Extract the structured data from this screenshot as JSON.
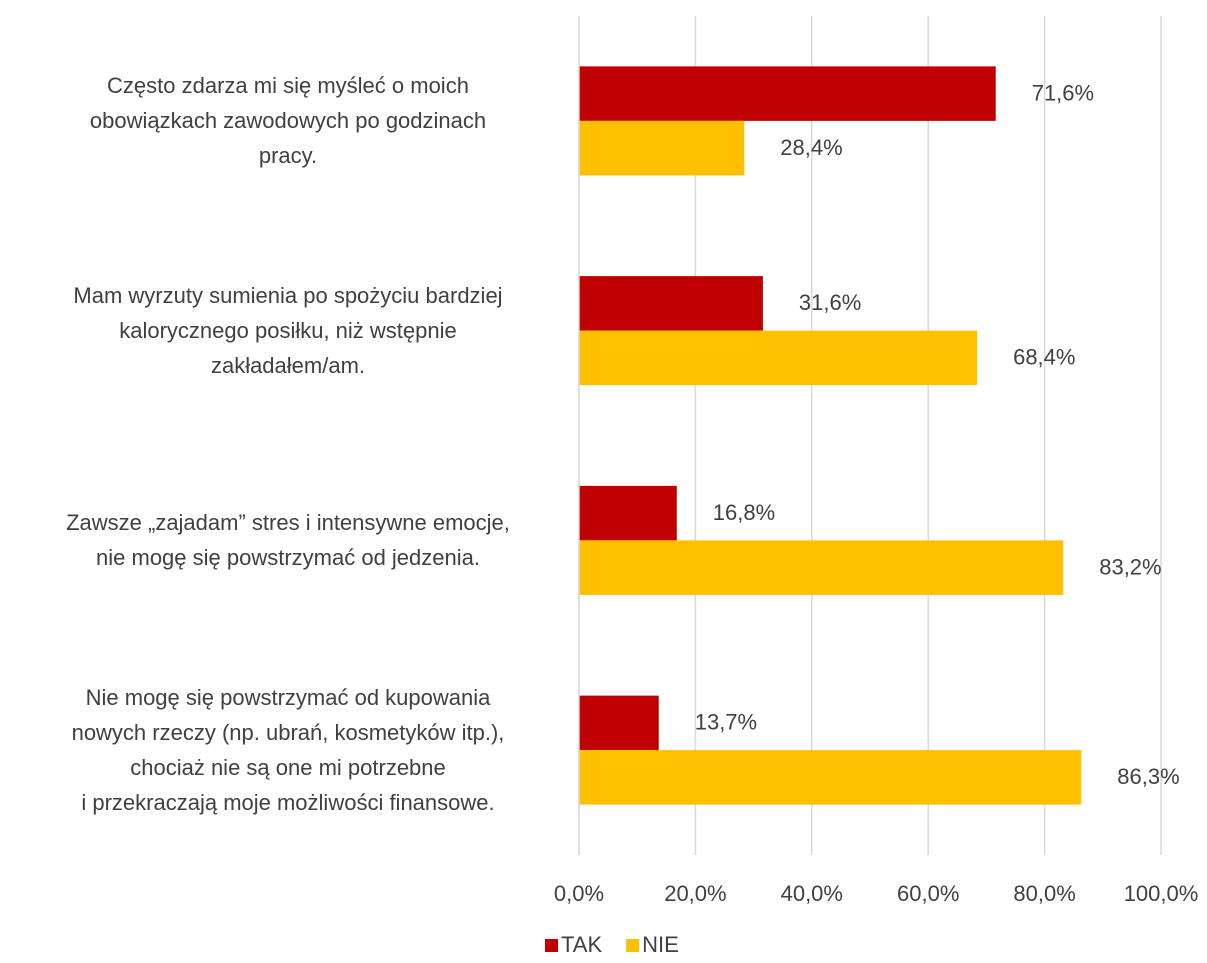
{
  "chart_data": {
    "type": "hbar",
    "categories": [
      "Często zdarza mi się myśleć o moich\nobowiązkach zawodowych po godzinach\npracy.",
      "Mam wyrzuty sumienia po spożyciu bardziej\nkalorycznego posiłku, niż wstępnie\nzakładałem/am.",
      "Zawsze „zajadam” stres i intensywne emocje,\nnie mogę się powstrzymać od jedzenia.",
      "Nie mogę się powstrzymać od kupowania\nnowych rzeczy (np. ubrań, kosmetyków itp.),\nchociaż nie są one mi potrzebne\ni przekraczają moje możliwości finansowe."
    ],
    "series": [
      {
        "name": "TAK",
        "color": "#c00000",
        "values": [
          71.6,
          31.6,
          16.8,
          13.7
        ],
        "value_labels": [
          "71,6%",
          "31,6%",
          "16,8%",
          "13,7%"
        ]
      },
      {
        "name": "NIE",
        "color": "#ffc000",
        "values": [
          28.4,
          68.4,
          83.2,
          86.3
        ],
        "value_labels": [
          "28,4%",
          "68,4%",
          "83,2%",
          "86,3%"
        ]
      }
    ],
    "xlim": [
      0,
      100
    ],
    "xticks": [
      {
        "value": 0,
        "label": "0,0%"
      },
      {
        "value": 20,
        "label": "20,0%"
      },
      {
        "value": 40,
        "label": "40,0%"
      },
      {
        "value": 60,
        "label": "60,0%"
      },
      {
        "value": 80,
        "label": "80,0%"
      },
      {
        "value": 100,
        "label": "100,0%"
      }
    ],
    "grid": true,
    "legend": "bottom"
  }
}
